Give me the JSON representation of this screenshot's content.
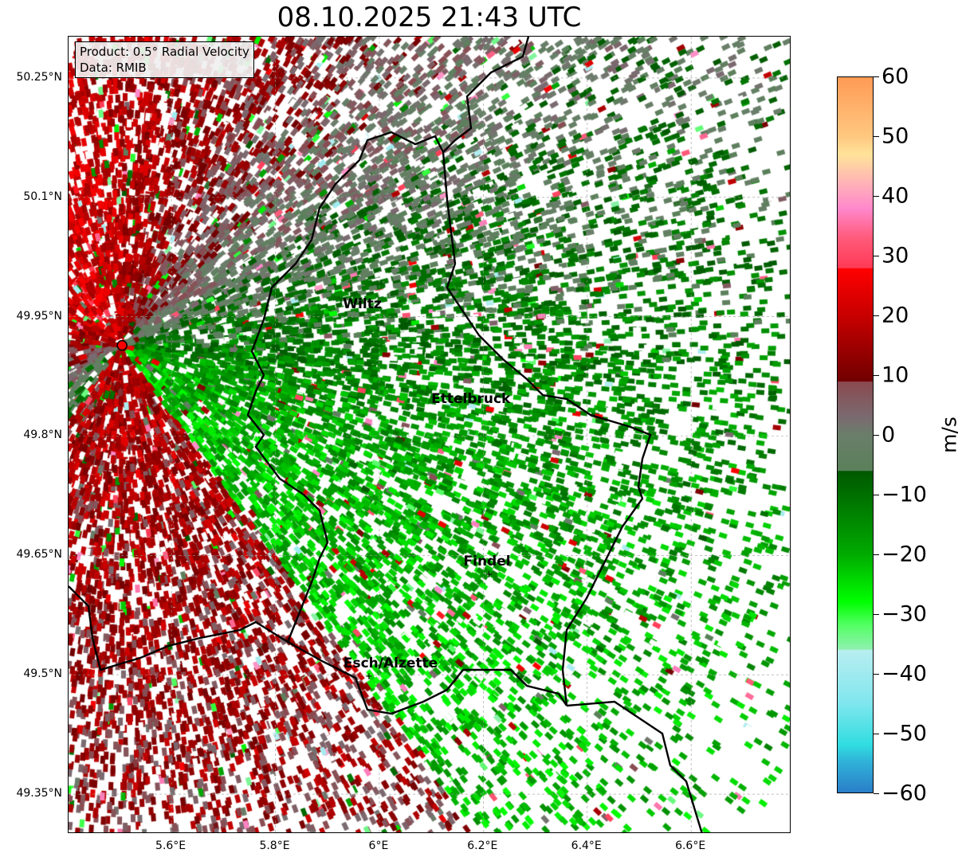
{
  "title": "08.10.2025 21:43 UTC",
  "info_box": {
    "product": "Product: 0.5° Radial Velocity",
    "data": "Data: RMIB"
  },
  "map": {
    "lon_range": [
      5.402,
      6.793
    ],
    "lat_range": [
      49.3,
      50.302
    ],
    "x_ticks": [
      {
        "value": 5.6,
        "label": "5.6°E"
      },
      {
        "value": 5.8,
        "label": "5.8°E"
      },
      {
        "value": 6.0,
        "label": "6°E"
      },
      {
        "value": 6.2,
        "label": "6.2°E"
      },
      {
        "value": 6.4,
        "label": "6.4°E"
      },
      {
        "value": 6.6,
        "label": "6.6°E"
      }
    ],
    "y_ticks": [
      {
        "value": 50.25,
        "label": "50.25°N"
      },
      {
        "value": 50.1,
        "label": "50.1°N"
      },
      {
        "value": 49.95,
        "label": "49.95°N"
      },
      {
        "value": 49.8,
        "label": "49.8°N"
      },
      {
        "value": 49.65,
        "label": "49.65°N"
      },
      {
        "value": 49.5,
        "label": "49.5°N"
      },
      {
        "value": 49.35,
        "label": "49.35°N"
      }
    ],
    "radar_site": {
      "lon": 5.505,
      "lat": 49.914
    },
    "cities": [
      {
        "name": "Wiltz",
        "lon": 5.93,
        "lat": 49.966,
        "marker": false
      },
      {
        "name": "Ettelbruck",
        "lon": 6.1,
        "lat": 49.847,
        "marker": false
      },
      {
        "name": "Findel",
        "lon": 6.211,
        "lat": 49.626,
        "marker": true
      },
      {
        "name": "Esch/Alzette",
        "lon": 5.98,
        "lat": 49.498,
        "marker": true
      }
    ]
  },
  "colorbar": {
    "label": "m/s",
    "min": -60,
    "max": 60,
    "ticks": [
      {
        "value": 60,
        "label": "60"
      },
      {
        "value": 50,
        "label": "50"
      },
      {
        "value": 40,
        "label": "40"
      },
      {
        "value": 30,
        "label": "30"
      },
      {
        "value": 20,
        "label": "20"
      },
      {
        "value": 10,
        "label": "10"
      },
      {
        "value": 0,
        "label": "0"
      },
      {
        "value": -10,
        "label": "−10"
      },
      {
        "value": -20,
        "label": "−20"
      },
      {
        "value": -30,
        "label": "−30"
      },
      {
        "value": -40,
        "label": "−40"
      },
      {
        "value": -50,
        "label": "−50"
      },
      {
        "value": -60,
        "label": "−60"
      }
    ],
    "colors": [
      {
        "v": 60,
        "c": "#ff9a55"
      },
      {
        "v": 50,
        "c": "#ffc880"
      },
      {
        "v": 47,
        "c": "#ffe39a"
      },
      {
        "v": 42,
        "c": "#ffb0b8"
      },
      {
        "v": 38,
        "c": "#ff88cc"
      },
      {
        "v": 33,
        "c": "#ff5a7a"
      },
      {
        "v": 28,
        "c": "#ff3a55"
      },
      {
        "v": 27.9,
        "c": "#ff0000"
      },
      {
        "v": 20,
        "c": "#c80000"
      },
      {
        "v": 9,
        "c": "#700000"
      },
      {
        "v": 8.9,
        "c": "#8a4a50"
      },
      {
        "v": 3,
        "c": "#7a6a70"
      },
      {
        "v": 0,
        "c": "#6a7e6a"
      },
      {
        "v": -6,
        "c": "#5a805a"
      },
      {
        "v": -6.1,
        "c": "#005800"
      },
      {
        "v": -20,
        "c": "#00aa00"
      },
      {
        "v": -28,
        "c": "#00ff00"
      },
      {
        "v": -32,
        "c": "#55ff66"
      },
      {
        "v": -36,
        "c": "#90f0b0"
      },
      {
        "v": -36.1,
        "c": "#b8eef0"
      },
      {
        "v": -45,
        "c": "#80e6ee"
      },
      {
        "v": -52,
        "c": "#30dde0"
      },
      {
        "v": -55,
        "c": "#30b0d8"
      },
      {
        "v": -60,
        "c": "#2a7ec8"
      }
    ]
  }
}
